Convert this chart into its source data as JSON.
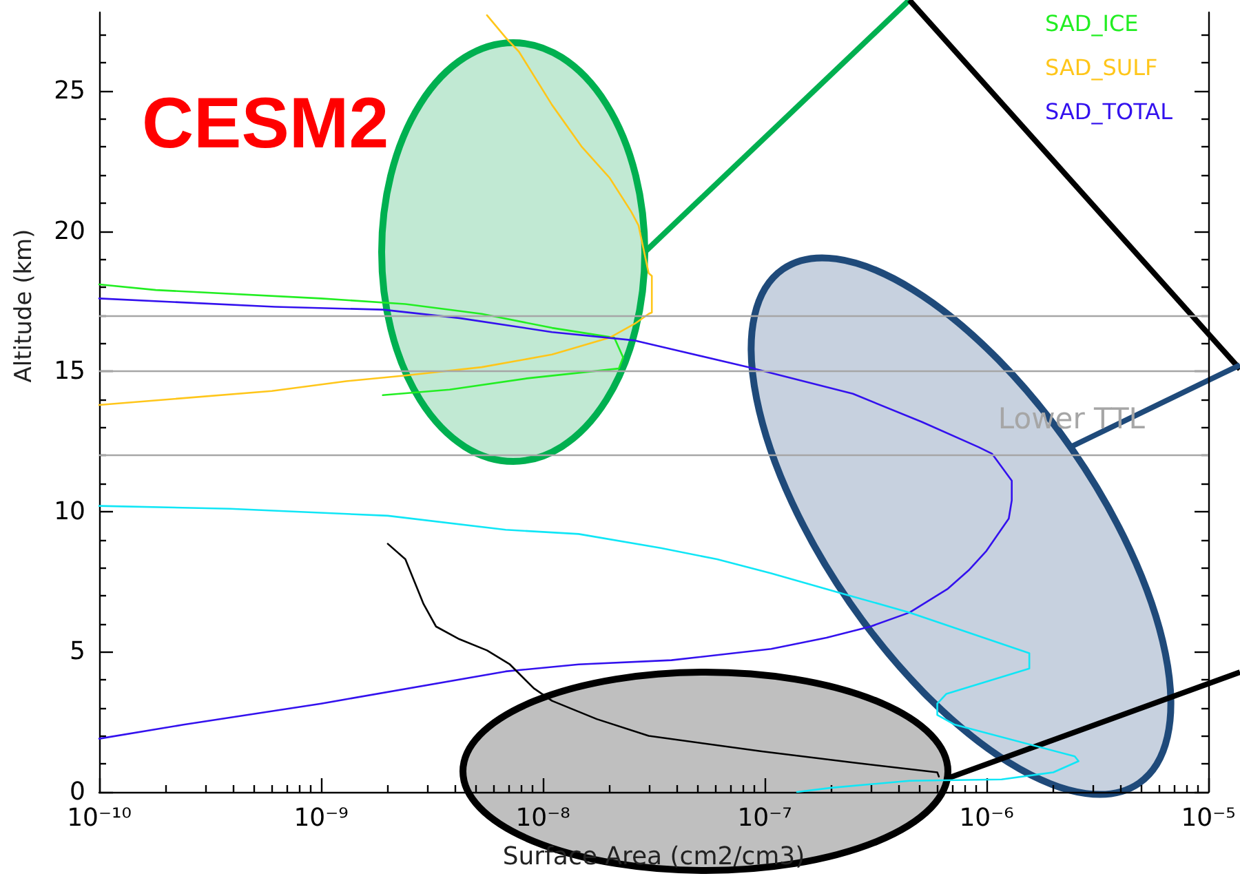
{
  "chart_data": {
    "type": "line",
    "annotations": [
      "CESM2"
    ],
    "xlabel": "Surface Area (cm2/cm3)",
    "ylabel": "Altitude (km)",
    "log": "x",
    "legend": "top right",
    "xlim": [
      1e-10,
      1e-05
    ],
    "ylim": [
      0,
      27.8
    ],
    "xticks": [
      {
        "value": 1e-10,
        "label": "10⁻¹⁰"
      },
      {
        "value": 2e-10,
        "label": null
      },
      {
        "value": 3e-10,
        "label": null
      },
      {
        "value": 4e-10,
        "label": null
      },
      {
        "value": 5e-10,
        "label": null
      },
      {
        "value": 6e-10,
        "label": null
      },
      {
        "value": 7e-10,
        "label": null
      },
      {
        "value": 8e-10,
        "label": null
      },
      {
        "value": 9e-10,
        "label": null
      },
      {
        "value": 1e-09,
        "label": "10⁻⁹"
      },
      {
        "value": 2e-09,
        "label": null
      },
      {
        "value": 3e-09,
        "label": null
      },
      {
        "value": 4e-09,
        "label": null
      },
      {
        "value": 5e-09,
        "label": null
      },
      {
        "value": 6e-09,
        "label": null
      },
      {
        "value": 7e-09,
        "label": null
      },
      {
        "value": 8e-09,
        "label": null
      },
      {
        "value": 9e-09,
        "label": null
      },
      {
        "value": 1e-08,
        "label": "10⁻⁸"
      },
      {
        "value": 2e-08,
        "label": null
      },
      {
        "value": 3e-08,
        "label": null
      },
      {
        "value": 4e-08,
        "label": null
      },
      {
        "value": 5e-08,
        "label": null
      },
      {
        "value": 6e-08,
        "label": null
      },
      {
        "value": 7e-08,
        "label": null
      },
      {
        "value": 8e-08,
        "label": null
      },
      {
        "value": 9e-08,
        "label": null
      },
      {
        "value": 1e-07,
        "label": "10⁻⁷"
      },
      {
        "value": 2e-07,
        "label": null
      },
      {
        "value": 3e-07,
        "label": null
      },
      {
        "value": 4e-07,
        "label": null
      },
      {
        "value": 5e-07,
        "label": null
      },
      {
        "value": 6e-07,
        "label": null
      },
      {
        "value": 7e-07,
        "label": null
      },
      {
        "value": 8e-07,
        "label": null
      },
      {
        "value": 9e-07,
        "label": null
      },
      {
        "value": 1e-06,
        "label": "10⁻⁶"
      },
      {
        "value": 2e-06,
        "label": null
      },
      {
        "value": 3e-06,
        "label": null
      },
      {
        "value": 4e-06,
        "label": null
      },
      {
        "value": 5e-06,
        "label": null
      },
      {
        "value": 6e-06,
        "label": null
      },
      {
        "value": 7e-06,
        "label": null
      },
      {
        "value": 8e-06,
        "label": null
      },
      {
        "value": 9e-06,
        "label": null
      },
      {
        "value": 1e-05,
        "label": "10⁻⁵"
      }
    ],
    "yticks": [
      0,
      {
        "value": 1,
        "label": null
      },
      {
        "value": 2,
        "label": null
      },
      {
        "value": 3,
        "label": null
      },
      {
        "value": 4,
        "label": null
      },
      5,
      {
        "value": 6,
        "label": null
      },
      {
        "value": 7,
        "label": null
      },
      {
        "value": 8,
        "label": null
      },
      {
        "value": 9,
        "label": null
      },
      10,
      {
        "value": 11,
        "label": null
      },
      {
        "value": 12,
        "label": null
      },
      {
        "value": 13,
        "label": null
      },
      {
        "value": 14,
        "label": null
      },
      15,
      {
        "value": 16,
        "label": null
      },
      {
        "value": 17,
        "label": null
      },
      {
        "value": 18,
        "label": null
      },
      {
        "value": 19,
        "label": null
      },
      20,
      {
        "value": 21,
        "label": null
      },
      {
        "value": 22,
        "label": null
      },
      {
        "value": 23,
        "label": null
      },
      {
        "value": 24,
        "label": null
      },
      25,
      {
        "value": 26,
        "label": null
      },
      {
        "value": 27,
        "label": null
      }
    ],
    "ref_lines": [
      {
        "axis": "y",
        "value": 17,
        "label": null,
        "color": "#a6a6a6"
      },
      {
        "axis": "y",
        "value": 15,
        "label": null,
        "color": "#a6a6a6"
      },
      {
        "axis": "y",
        "value": 12,
        "label": "Lower TTL",
        "color": "#a6a6a6"
      }
    ],
    "series": [
      {
        "name": "SAD_ICE",
        "color": "#22ee22",
        "x": [
          1.9e-09,
          3.8e-09,
          8.5e-09,
          2.2e-08,
          2.3e-08,
          2.1e-08,
          1.1e-08,
          5.3e-09,
          2.4e-09,
          1e-09,
          1.8e-10,
          1e-10
        ],
        "values": [
          14.15,
          14.35,
          14.75,
          15.1,
          15.5,
          16.2,
          16.55,
          17.05,
          17.4,
          17.6,
          17.9,
          18.1
        ]
      },
      {
        "name": "SAD_SULF",
        "color": "#ffc61a",
        "x": [
          1e-10,
          6e-10,
          1.3e-09,
          2.4e-09,
          5.3e-09,
          1.1e-08,
          2e-08,
          2.6e-08,
          3e-08,
          3.1e-08,
          3.1e-08,
          3e-08,
          2.7e-08,
          2.5e-08,
          2e-08,
          1.5e-08,
          1.1e-08,
          7.8e-09,
          6.8e-09,
          5.6e-09
        ],
        "values": [
          13.8,
          14.3,
          14.65,
          14.85,
          15.15,
          15.6,
          16.2,
          16.7,
          17.05,
          17.1,
          18.4,
          18.5,
          20.2,
          20.7,
          21.9,
          23.0,
          24.5,
          26.4,
          26.9,
          27.7
        ]
      },
      {
        "name": "SAD_TOTAL",
        "color": "#3311ee",
        "x": [
          1e-10,
          6.2e-10,
          1.9e-09,
          4.2e-09,
          1.1e-08,
          2.6e-08,
          8.4e-08,
          2.5e-07,
          5.1e-07,
          9.2e-07,
          1.06e-06,
          1.3e-06,
          1.3e-06,
          1.26e-06,
          1e-06,
          8.3e-07,
          6.7e-07,
          4.5e-07,
          3e-07,
          1.9e-07,
          1.07e-07,
          3.8e-08,
          1.45e-08,
          6.8e-09,
          1e-09,
          2.4e-10,
          1e-10
        ],
        "values": [
          17.6,
          17.3,
          17.2,
          16.9,
          16.4,
          16.1,
          15.15,
          14.2,
          13.2,
          12.3,
          12.06,
          11.1,
          10.4,
          9.75,
          8.6,
          7.9,
          7.25,
          6.4,
          5.9,
          5.5,
          5.1,
          4.7,
          4.55,
          4.3,
          3.15,
          2.4,
          1.9
        ]
      },
      {
        "color": "#10e6f6",
        "x": [
          1e-10,
          3.9e-10,
          2e-09,
          6.8e-09,
          1.45e-08,
          3.4e-08,
          6.1e-08,
          1.07e-07,
          2.3e-07,
          4.5e-07,
          1.56e-06,
          1.56e-06,
          6.6e-07,
          6e-07,
          6e-07,
          7.2e-07,
          2.5e-06,
          2.6e-06,
          2e-06,
          1.17e-06,
          4.5e-07,
          2e-07,
          1.4e-07
        ],
        "values": [
          10.2,
          10.1,
          9.85,
          9.35,
          9.2,
          8.7,
          8.3,
          7.8,
          7.05,
          6.4,
          4.95,
          4.4,
          3.5,
          3.15,
          2.75,
          2.4,
          1.27,
          1.1,
          0.7,
          0.45,
          0.4,
          0.15,
          0
        ]
      },
      {
        "color": "#000000",
        "x": [
          2e-09,
          2.4e-09,
          2.9e-09,
          3.3e-09,
          4.2e-09,
          5.6e-09,
          7.1e-09,
          9.1e-09,
          1.1e-08,
          1.75e-08,
          3e-08,
          9.7e-08,
          2.5e-07,
          6e-07,
          6.1e-07
        ],
        "values": [
          8.85,
          8.3,
          6.7,
          5.9,
          5.45,
          5.05,
          4.55,
          3.7,
          3.25,
          2.6,
          2.0,
          1.45,
          1.05,
          0.7,
          0.55
        ]
      }
    ]
  }
}
